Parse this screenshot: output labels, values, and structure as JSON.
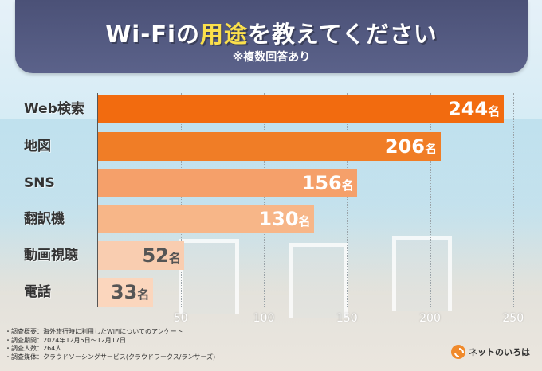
{
  "header": {
    "title_pre": "Wi-Fiの",
    "title_highlight": "用途",
    "title_post": "を教えてください",
    "subtitle": "※複数回答あり"
  },
  "chart_data": {
    "type": "bar",
    "orientation": "horizontal",
    "categories": [
      "Web検索",
      "地図",
      "SNS",
      "翻訳機",
      "動画視聴",
      "電話"
    ],
    "values": [
      244,
      206,
      156,
      130,
      52,
      33
    ],
    "value_unit": "名",
    "xlim": [
      0,
      260
    ],
    "xticks": [
      50,
      100,
      150,
      200,
      250
    ],
    "grid": true,
    "colors": [
      "#f26b0f",
      "#f07d26",
      "#f5a06a",
      "#f7b688",
      "#f9cdb0",
      "#fbd6bd"
    ],
    "label_colors": [
      "#ffffff",
      "#ffffff",
      "#ffffff",
      "#ffffff",
      "#555555",
      "#555555"
    ]
  },
  "notes": [
    "・調査概要：海外旅行時に利用したWiFiについてのアンケート",
    "・調査期間：2024年12月5日～12月17日",
    "・調査人数：264人",
    "・調査媒体：クラウドソーシングサービス(クラウドワークス/ランサーズ)"
  ],
  "logo": {
    "text": "ネットのいろは",
    "icon": "logo-circle-icon",
    "color": "#f08a2c"
  }
}
